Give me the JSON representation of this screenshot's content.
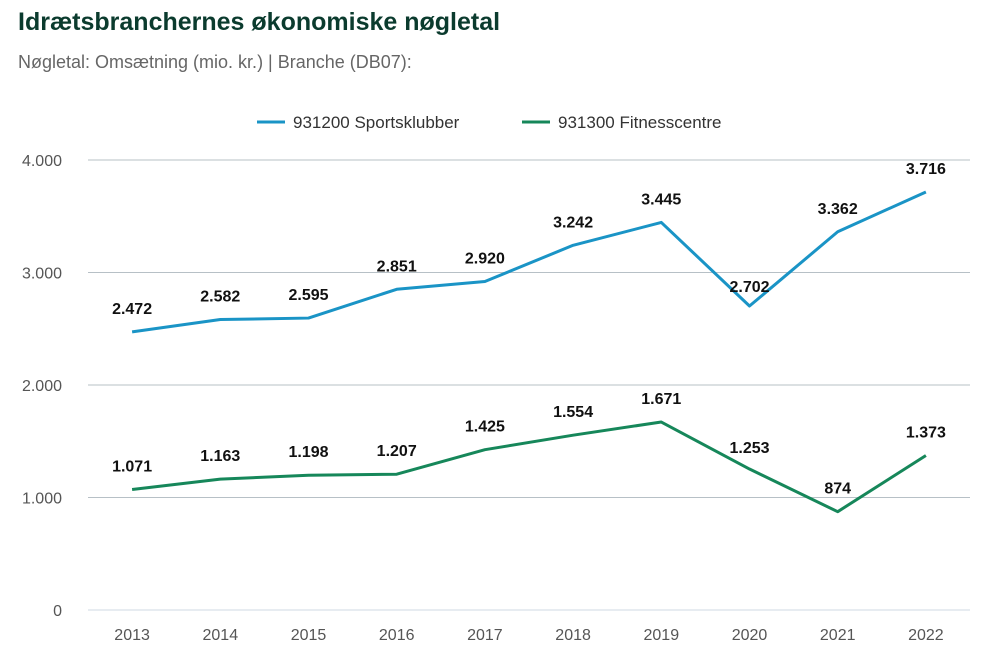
{
  "chart_data": {
    "type": "line",
    "title": "Idrætsbranchernes økonomiske nøgletal",
    "subtitle": "Nøgletal: Omsætning (mio. kr.) | Branche (DB07):",
    "xlabel": "",
    "ylabel": "",
    "ylim": [
      0,
      4000
    ],
    "yticks": [
      0,
      1000,
      2000,
      3000,
      4000
    ],
    "ytick_labels": [
      "0",
      "1.000",
      "2.000",
      "3.000",
      "4.000"
    ],
    "categories": [
      "2013",
      "2014",
      "2015",
      "2016",
      "2017",
      "2018",
      "2019",
      "2020",
      "2021",
      "2022"
    ],
    "legend_position": "top-center",
    "grid": true,
    "series": [
      {
        "name": "931200 Sportsklubber",
        "color": "#1a94c6",
        "values": [
          2472,
          2582,
          2595,
          2851,
          2920,
          3242,
          3445,
          2702,
          3362,
          3716
        ],
        "labels": [
          "2.472",
          "2.582",
          "2.595",
          "2.851",
          "2.920",
          "3.242",
          "3.445",
          "2.702",
          "3.362",
          "3.716"
        ]
      },
      {
        "name": "931300 Fitnesscentre",
        "color": "#16875a",
        "values": [
          1071,
          1163,
          1198,
          1207,
          1425,
          1554,
          1671,
          1253,
          874,
          1373
        ],
        "labels": [
          "1.071",
          "1.163",
          "1.198",
          "1.207",
          "1.425",
          "1.554",
          "1.671",
          "1.253",
          "874",
          "1.373"
        ]
      }
    ]
  }
}
